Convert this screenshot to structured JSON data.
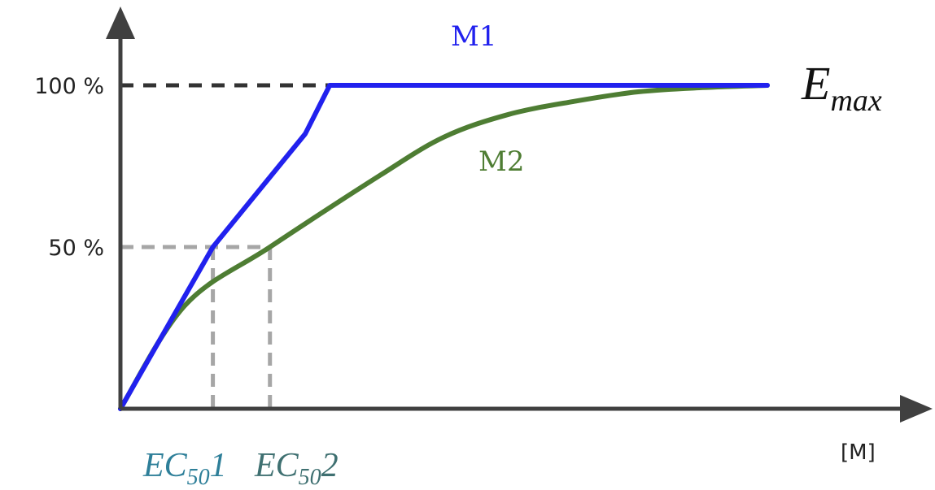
{
  "chart_data": {
    "type": "line",
    "y_ticks": [
      {
        "label": "100 %",
        "value": 100
      },
      {
        "label": "50 %",
        "value": 50
      }
    ],
    "xunit": "[M]",
    "ylim": [
      0,
      100
    ],
    "xlim": [
      0,
      1
    ],
    "grid": false,
    "series": [
      {
        "name": "M1",
        "color": "#2121ee",
        "points": [
          {
            "x": 0,
            "y": 0
          },
          {
            "x": 0.1429,
            "y": 50
          },
          {
            "x": 0.2857,
            "y": 85
          },
          {
            "x": 0.3235,
            "y": 100
          },
          {
            "x": 1,
            "y": 100
          }
        ]
      },
      {
        "name": "M2",
        "color": "#4e7d33",
        "points": [
          {
            "x": 0,
            "y": 0
          },
          {
            "x": 0.1,
            "y": 32
          },
          {
            "x": 0.2311,
            "y": 50
          },
          {
            "x": 0.4,
            "y": 72
          },
          {
            "x": 0.5,
            "y": 84
          },
          {
            "x": 0.6,
            "y": 91
          },
          {
            "x": 0.7,
            "y": 95
          },
          {
            "x": 0.8,
            "y": 98
          },
          {
            "x": 0.9,
            "y": 99.3
          },
          {
            "x": 1,
            "y": 100
          }
        ]
      }
    ],
    "emax": {
      "main": "E",
      "sub": "max",
      "level": 100
    },
    "ec50_markers": [
      {
        "prefix": "EC",
        "sub": "50",
        "suffix": "1",
        "x": 0.1429,
        "y": 50,
        "color": "#2e7f99"
      },
      {
        "prefix": "EC",
        "sub": "50",
        "suffix": "2",
        "x": 0.2311,
        "y": 50,
        "color": "#3f7071"
      }
    ],
    "reference_colors": {
      "emax_line": "#333333",
      "ec50_lines": "#a6a6a6",
      "axis": "#404040"
    }
  }
}
